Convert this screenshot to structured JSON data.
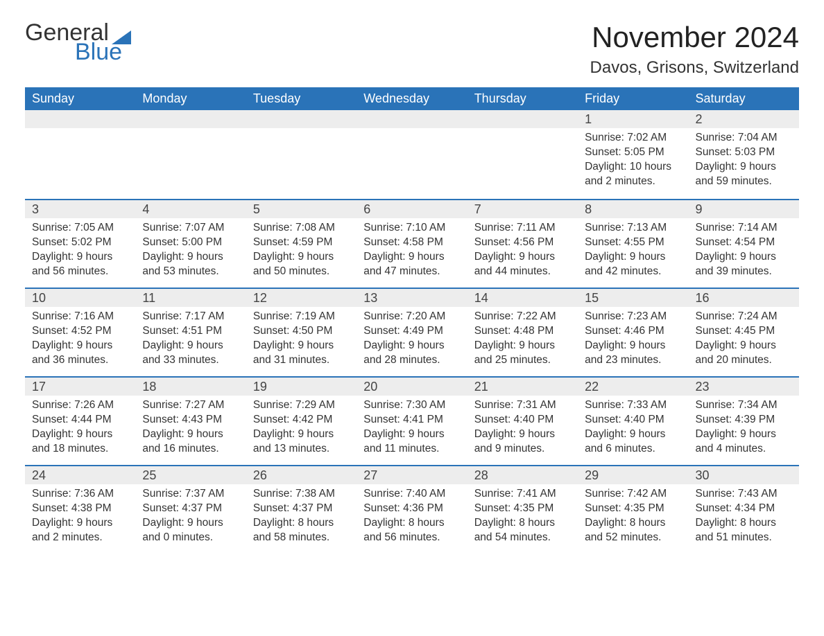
{
  "brand": {
    "text1": "General",
    "text2": "Blue",
    "text1_color": "#333333",
    "text2_color": "#2a73b8",
    "triangle_color": "#2a73b8"
  },
  "header": {
    "month_title": "November 2024",
    "location": "Davos, Grisons, Switzerland"
  },
  "style": {
    "header_bg": "#2a73b8",
    "header_text": "#ffffff",
    "daynum_bg": "#ededed",
    "row_border": "#2a73b8",
    "body_text": "#333333",
    "title_fontsize": 42,
    "location_fontsize": 24,
    "weekday_fontsize": 18,
    "cell_fontsize": 15.5
  },
  "weekdays": [
    "Sunday",
    "Monday",
    "Tuesday",
    "Wednesday",
    "Thursday",
    "Friday",
    "Saturday"
  ],
  "weeks": [
    [
      {
        "day": "",
        "empty": true
      },
      {
        "day": "",
        "empty": true
      },
      {
        "day": "",
        "empty": true
      },
      {
        "day": "",
        "empty": true
      },
      {
        "day": "",
        "empty": true
      },
      {
        "day": "1",
        "sunrise": "Sunrise: 7:02 AM",
        "sunset": "Sunset: 5:05 PM",
        "daylight1": "Daylight: 10 hours",
        "daylight2": "and 2 minutes."
      },
      {
        "day": "2",
        "sunrise": "Sunrise: 7:04 AM",
        "sunset": "Sunset: 5:03 PM",
        "daylight1": "Daylight: 9 hours",
        "daylight2": "and 59 minutes."
      }
    ],
    [
      {
        "day": "3",
        "sunrise": "Sunrise: 7:05 AM",
        "sunset": "Sunset: 5:02 PM",
        "daylight1": "Daylight: 9 hours",
        "daylight2": "and 56 minutes."
      },
      {
        "day": "4",
        "sunrise": "Sunrise: 7:07 AM",
        "sunset": "Sunset: 5:00 PM",
        "daylight1": "Daylight: 9 hours",
        "daylight2": "and 53 minutes."
      },
      {
        "day": "5",
        "sunrise": "Sunrise: 7:08 AM",
        "sunset": "Sunset: 4:59 PM",
        "daylight1": "Daylight: 9 hours",
        "daylight2": "and 50 minutes."
      },
      {
        "day": "6",
        "sunrise": "Sunrise: 7:10 AM",
        "sunset": "Sunset: 4:58 PM",
        "daylight1": "Daylight: 9 hours",
        "daylight2": "and 47 minutes."
      },
      {
        "day": "7",
        "sunrise": "Sunrise: 7:11 AM",
        "sunset": "Sunset: 4:56 PM",
        "daylight1": "Daylight: 9 hours",
        "daylight2": "and 44 minutes."
      },
      {
        "day": "8",
        "sunrise": "Sunrise: 7:13 AM",
        "sunset": "Sunset: 4:55 PM",
        "daylight1": "Daylight: 9 hours",
        "daylight2": "and 42 minutes."
      },
      {
        "day": "9",
        "sunrise": "Sunrise: 7:14 AM",
        "sunset": "Sunset: 4:54 PM",
        "daylight1": "Daylight: 9 hours",
        "daylight2": "and 39 minutes."
      }
    ],
    [
      {
        "day": "10",
        "sunrise": "Sunrise: 7:16 AM",
        "sunset": "Sunset: 4:52 PM",
        "daylight1": "Daylight: 9 hours",
        "daylight2": "and 36 minutes."
      },
      {
        "day": "11",
        "sunrise": "Sunrise: 7:17 AM",
        "sunset": "Sunset: 4:51 PM",
        "daylight1": "Daylight: 9 hours",
        "daylight2": "and 33 minutes."
      },
      {
        "day": "12",
        "sunrise": "Sunrise: 7:19 AM",
        "sunset": "Sunset: 4:50 PM",
        "daylight1": "Daylight: 9 hours",
        "daylight2": "and 31 minutes."
      },
      {
        "day": "13",
        "sunrise": "Sunrise: 7:20 AM",
        "sunset": "Sunset: 4:49 PM",
        "daylight1": "Daylight: 9 hours",
        "daylight2": "and 28 minutes."
      },
      {
        "day": "14",
        "sunrise": "Sunrise: 7:22 AM",
        "sunset": "Sunset: 4:48 PM",
        "daylight1": "Daylight: 9 hours",
        "daylight2": "and 25 minutes."
      },
      {
        "day": "15",
        "sunrise": "Sunrise: 7:23 AM",
        "sunset": "Sunset: 4:46 PM",
        "daylight1": "Daylight: 9 hours",
        "daylight2": "and 23 minutes."
      },
      {
        "day": "16",
        "sunrise": "Sunrise: 7:24 AM",
        "sunset": "Sunset: 4:45 PM",
        "daylight1": "Daylight: 9 hours",
        "daylight2": "and 20 minutes."
      }
    ],
    [
      {
        "day": "17",
        "sunrise": "Sunrise: 7:26 AM",
        "sunset": "Sunset: 4:44 PM",
        "daylight1": "Daylight: 9 hours",
        "daylight2": "and 18 minutes."
      },
      {
        "day": "18",
        "sunrise": "Sunrise: 7:27 AM",
        "sunset": "Sunset: 4:43 PM",
        "daylight1": "Daylight: 9 hours",
        "daylight2": "and 16 minutes."
      },
      {
        "day": "19",
        "sunrise": "Sunrise: 7:29 AM",
        "sunset": "Sunset: 4:42 PM",
        "daylight1": "Daylight: 9 hours",
        "daylight2": "and 13 minutes."
      },
      {
        "day": "20",
        "sunrise": "Sunrise: 7:30 AM",
        "sunset": "Sunset: 4:41 PM",
        "daylight1": "Daylight: 9 hours",
        "daylight2": "and 11 minutes."
      },
      {
        "day": "21",
        "sunrise": "Sunrise: 7:31 AM",
        "sunset": "Sunset: 4:40 PM",
        "daylight1": "Daylight: 9 hours",
        "daylight2": "and 9 minutes."
      },
      {
        "day": "22",
        "sunrise": "Sunrise: 7:33 AM",
        "sunset": "Sunset: 4:40 PM",
        "daylight1": "Daylight: 9 hours",
        "daylight2": "and 6 minutes."
      },
      {
        "day": "23",
        "sunrise": "Sunrise: 7:34 AM",
        "sunset": "Sunset: 4:39 PM",
        "daylight1": "Daylight: 9 hours",
        "daylight2": "and 4 minutes."
      }
    ],
    [
      {
        "day": "24",
        "sunrise": "Sunrise: 7:36 AM",
        "sunset": "Sunset: 4:38 PM",
        "daylight1": "Daylight: 9 hours",
        "daylight2": "and 2 minutes."
      },
      {
        "day": "25",
        "sunrise": "Sunrise: 7:37 AM",
        "sunset": "Sunset: 4:37 PM",
        "daylight1": "Daylight: 9 hours",
        "daylight2": "and 0 minutes."
      },
      {
        "day": "26",
        "sunrise": "Sunrise: 7:38 AM",
        "sunset": "Sunset: 4:37 PM",
        "daylight1": "Daylight: 8 hours",
        "daylight2": "and 58 minutes."
      },
      {
        "day": "27",
        "sunrise": "Sunrise: 7:40 AM",
        "sunset": "Sunset: 4:36 PM",
        "daylight1": "Daylight: 8 hours",
        "daylight2": "and 56 minutes."
      },
      {
        "day": "28",
        "sunrise": "Sunrise: 7:41 AM",
        "sunset": "Sunset: 4:35 PM",
        "daylight1": "Daylight: 8 hours",
        "daylight2": "and 54 minutes."
      },
      {
        "day": "29",
        "sunrise": "Sunrise: 7:42 AM",
        "sunset": "Sunset: 4:35 PM",
        "daylight1": "Daylight: 8 hours",
        "daylight2": "and 52 minutes."
      },
      {
        "day": "30",
        "sunrise": "Sunrise: 7:43 AM",
        "sunset": "Sunset: 4:34 PM",
        "daylight1": "Daylight: 8 hours",
        "daylight2": "and 51 minutes."
      }
    ]
  ]
}
